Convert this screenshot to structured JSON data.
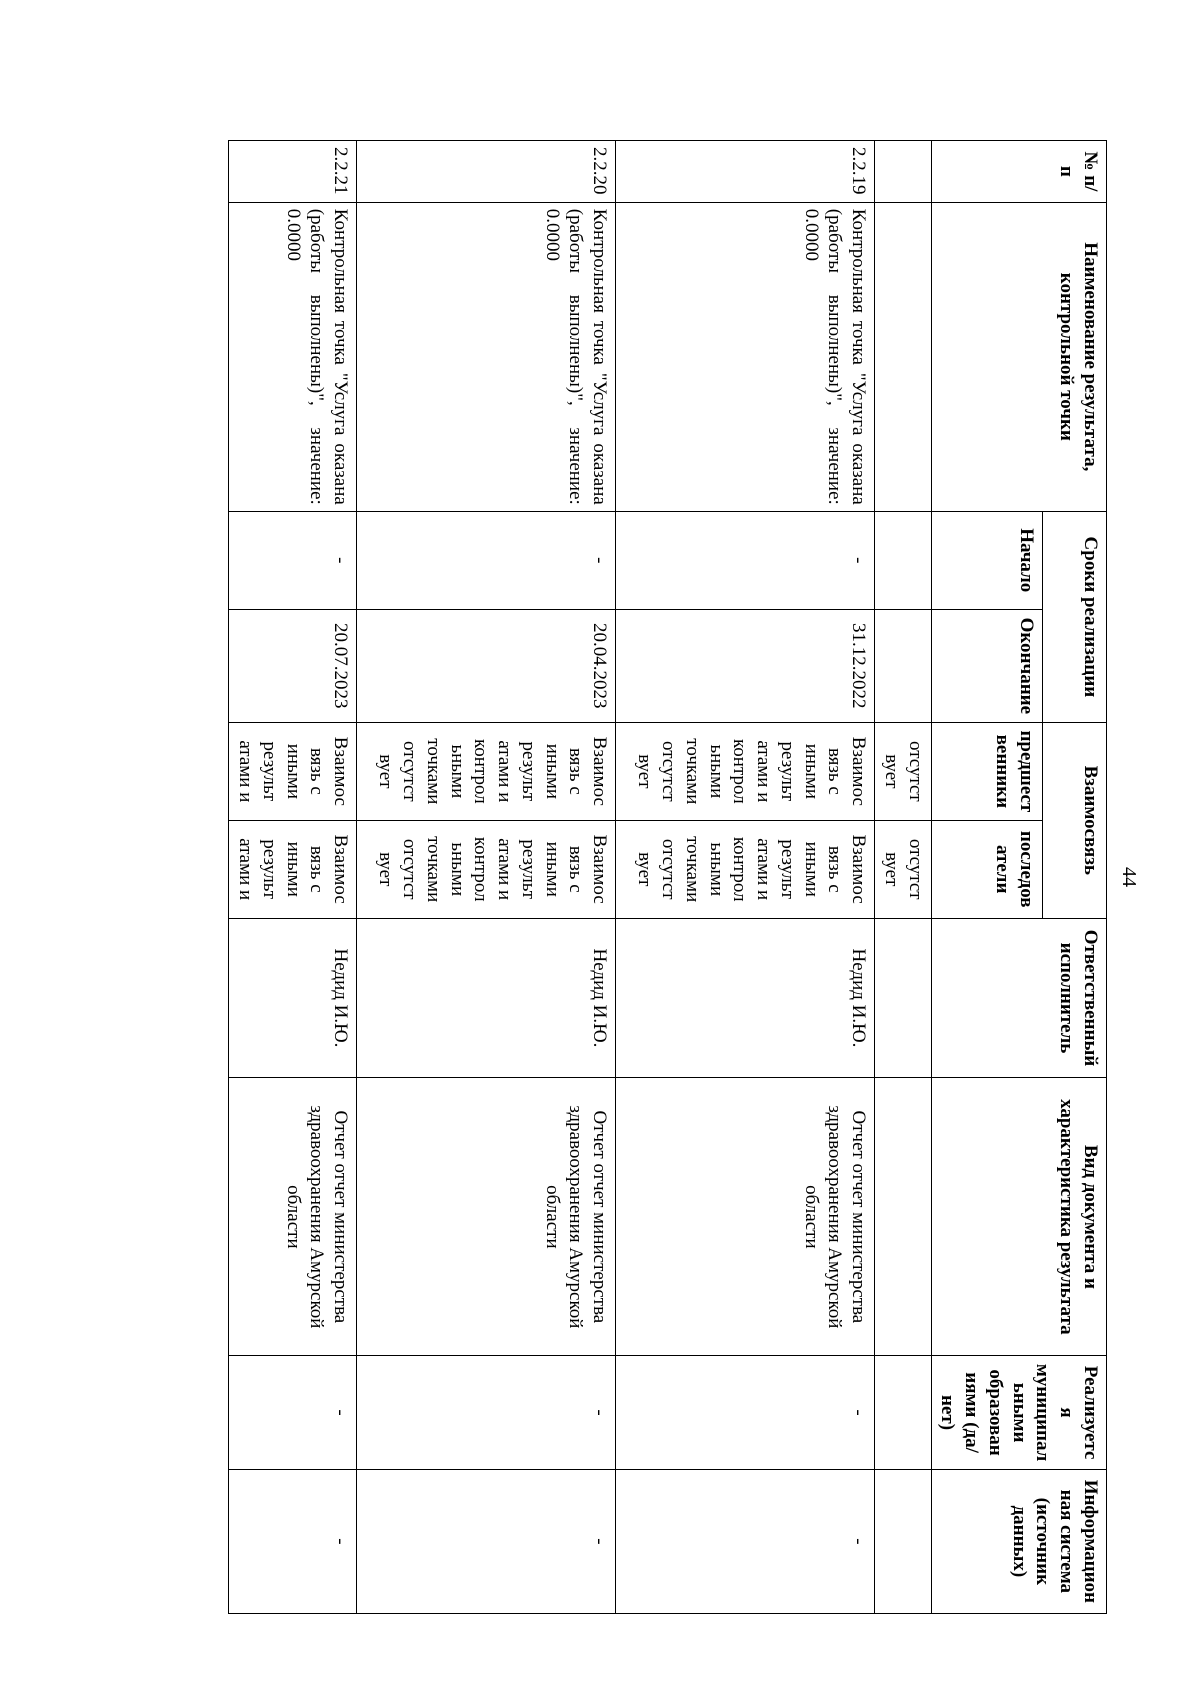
{
  "page_number": "44",
  "table": {
    "header": {
      "num": "№ п/п",
      "name": "Наименование результата, контрольной точки",
      "period": "Сроки реализации",
      "start": "Начало",
      "end": "Окончание",
      "link": "Взаимосвязь",
      "pred": "предшест венники",
      "succ": "последов атели",
      "resp": "Ответственный исполнитель",
      "doc": "Вид документа и характеристика результата",
      "mun": "Реализуетс я муниципал ьными образован иями (да/нет)",
      "info": "Информацион ная система (источник данных)"
    },
    "rows": [
      {
        "num": "",
        "name": "",
        "start": "",
        "end": "",
        "pred": "отсутст вует",
        "succ": "отсутст вует",
        "resp": "",
        "doc": "",
        "mun": "",
        "info": ""
      },
      {
        "num": "2.2.19",
        "name": "Контрольная точка \"Услуга оказана (работы выполнены)\", значение: 0.0000",
        "start": "-",
        "end": "31.12.2022",
        "pred": "Взаимос вязь с иными результ атами и контрол ьными точками отсутст вует",
        "succ": "Взаимос вязь с иными результ атами и контрол ьными точками отсутст вует",
        "resp": "Недид И.Ю.",
        "doc": "Отчет отчет министерства здравоохранения Амурской области",
        "mun": "-",
        "info": "-"
      },
      {
        "num": "2.2.20",
        "name": "Контрольная точка \"Услуга оказана (работы выполнены)\", значение: 0.0000",
        "start": "-",
        "end": "20.04.2023",
        "pred": "Взаимос вязь с иными результ атами и контрол ьными точками отсутст вует",
        "succ": "Взаимос вязь с иными результ атами и контрол ьными точками отсутст вует",
        "resp": "Недид И.Ю.",
        "doc": "Отчет отчет министерства здравоохранения Амурской области",
        "mun": "-",
        "info": "-"
      },
      {
        "num": "2.2.21",
        "name": "Контрольная точка \"Услуга оказана (работы выполнены)\", значение: 0.0000",
        "start": "-",
        "end": "20.07.2023",
        "pred": "Взаимос вязь с иными результ атами и",
        "succ": "Взаимос вязь с иными результ атами и",
        "resp": "Недид И.Ю.",
        "doc": "Отчет отчет министерства здравоохранения Амурской области",
        "mun": "-",
        "info": "-"
      }
    ]
  },
  "style": {
    "font_family": "Times New Roman",
    "font_size_pt": 14,
    "border_color": "#000000",
    "background_color": "#ffffff",
    "text_color": "#000000"
  }
}
